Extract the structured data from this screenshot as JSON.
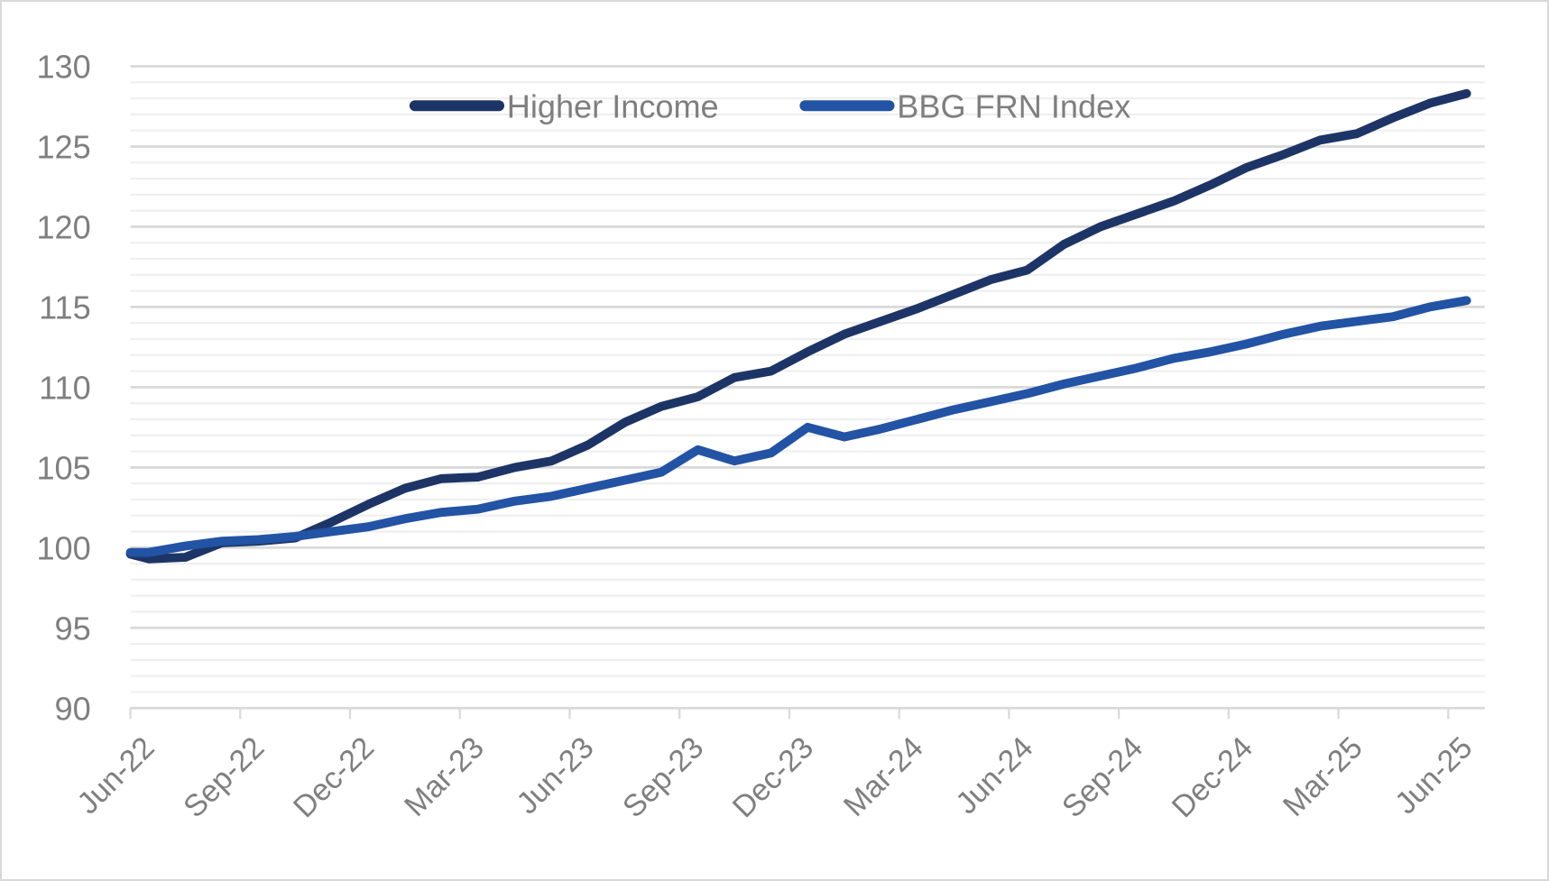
{
  "chart_data": {
    "type": "line",
    "title": "",
    "xlabel": "",
    "ylabel": "",
    "ylim": [
      90,
      130
    ],
    "yticks": [
      90,
      95,
      100,
      105,
      110,
      115,
      120,
      125,
      130
    ],
    "minor_grid_step": 1,
    "grid": true,
    "legend_position": "top-center",
    "xtick_labels": [
      "Jun-22",
      "Sep-22",
      "Dec-22",
      "Mar-23",
      "Jun-23",
      "Sep-23",
      "Dec-23",
      "Mar-24",
      "Jun-24",
      "Sep-24",
      "Dec-24",
      "Mar-25",
      "Jun-25"
    ],
    "x_months_since_jun22": [
      0,
      0.5,
      1.5,
      2.5,
      3.5,
      4.5,
      5.5,
      6.5,
      7.5,
      8.5,
      9.5,
      10.5,
      11.5,
      12.5,
      13.5,
      14.5,
      15.5,
      16.5,
      17.5,
      18.5,
      19.5,
      20.5,
      21.5,
      22.5,
      23.5,
      24.5,
      25.5,
      26.5,
      27.5,
      28.5,
      29.5,
      30.5,
      31.5,
      32.5,
      33.5,
      34.5,
      35.5,
      36.5
    ],
    "series": [
      {
        "name": "Higher Income",
        "color": "#1d3566",
        "values": [
          99.6,
          99.3,
          99.4,
          100.3,
          100.4,
          100.6,
          101.6,
          102.7,
          103.7,
          104.3,
          104.4,
          105.0,
          105.4,
          106.4,
          107.8,
          108.8,
          109.4,
          110.6,
          111.0,
          112.2,
          113.3,
          114.1,
          114.9,
          115.8,
          116.7,
          117.3,
          118.9,
          120.0,
          120.8,
          121.6,
          122.6,
          123.7,
          124.5,
          125.4,
          125.8,
          126.8,
          127.7,
          128.3
        ]
      },
      {
        "name": "BBG FRN Index",
        "color": "#2253a4",
        "values": [
          99.7,
          99.7,
          100.1,
          100.4,
          100.5,
          100.7,
          101.0,
          101.3,
          101.8,
          102.2,
          102.4,
          102.9,
          103.2,
          103.7,
          104.2,
          104.7,
          106.1,
          105.4,
          105.9,
          107.5,
          106.9,
          107.4,
          108.0,
          108.6,
          109.1,
          109.6,
          110.2,
          110.7,
          111.2,
          111.8,
          112.2,
          112.7,
          113.3,
          113.8,
          114.1,
          114.4,
          115.0,
          115.4
        ]
      }
    ]
  }
}
